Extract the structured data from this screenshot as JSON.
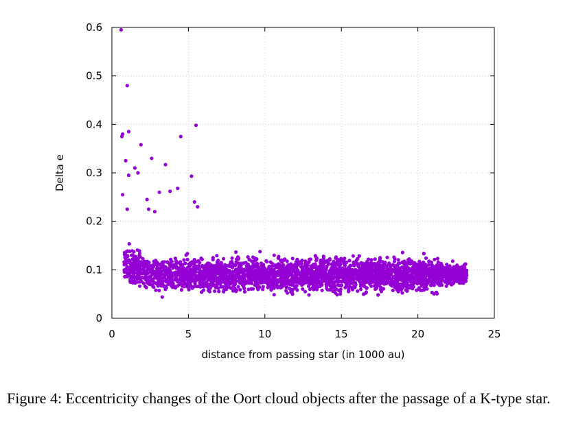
{
  "caption": "Figure 4: Eccentricity changes of the Oort cloud objects after the passage of a K-type star.",
  "colors": {
    "points": "#9400d3",
    "grid": "#c8c8c8",
    "axes": "#000000"
  },
  "chart_data": {
    "type": "scatter",
    "title": "",
    "xlabel": "distance from passing star (in 1000 au)",
    "ylabel": "Delta e",
    "xlim": [
      0,
      25
    ],
    "ylim": [
      0,
      0.6
    ],
    "xticks": [
      0,
      5,
      10,
      15,
      20,
      25
    ],
    "xtick_labels": [
      "0",
      "5",
      "10",
      "15",
      "20",
      "25"
    ],
    "yticks": [
      0,
      0.1,
      0.2,
      0.3,
      0.4,
      0.5,
      0.6
    ],
    "ytick_labels": [
      "0",
      "0.1",
      "0.2",
      "0.3",
      "0.4",
      "0.5",
      "0.6"
    ],
    "grid": true,
    "legend": "none",
    "series": [
      {
        "main_cloud": {
          "x_range": [
            0.8,
            23.2
          ],
          "y_range": [
            0.0,
            0.17
          ],
          "y_center": 0.09,
          "point_count": "several thousand"
        },
        "outliers": [
          [
            0.6,
            0.595
          ],
          [
            1.0,
            0.48
          ],
          [
            0.7,
            0.38
          ],
          [
            0.65,
            0.375
          ],
          [
            1.1,
            0.385
          ],
          [
            5.5,
            0.398
          ],
          [
            4.5,
            0.375
          ],
          [
            1.9,
            0.358
          ],
          [
            0.9,
            0.325
          ],
          [
            2.6,
            0.33
          ],
          [
            3.5,
            0.317
          ],
          [
            1.5,
            0.31
          ],
          [
            1.7,
            0.3
          ],
          [
            1.1,
            0.295
          ],
          [
            5.2,
            0.293
          ],
          [
            4.3,
            0.268
          ],
          [
            0.7,
            0.255
          ],
          [
            3.1,
            0.26
          ],
          [
            3.8,
            0.262
          ],
          [
            2.3,
            0.245
          ],
          [
            5.4,
            0.24
          ],
          [
            5.6,
            0.23
          ],
          [
            2.4,
            0.225
          ],
          [
            1.0,
            0.225
          ],
          [
            2.8,
            0.22
          ]
        ]
      }
    ]
  }
}
